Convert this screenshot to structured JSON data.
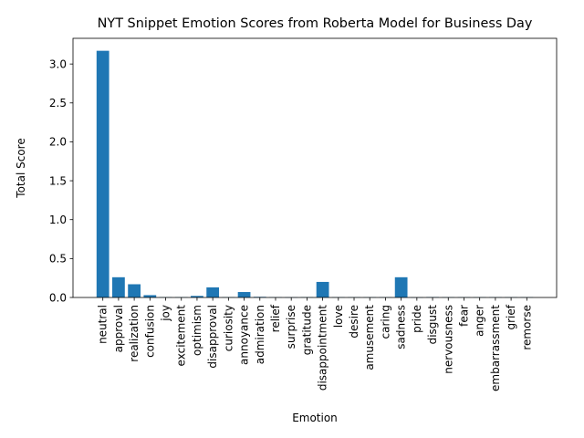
{
  "chart_data": {
    "type": "bar",
    "title": "NYT Snippet Emotion Scores from Roberta Model for Business Day",
    "xlabel": "Emotion",
    "ylabel": "Total Score",
    "ylim": [
      0,
      3.33
    ],
    "yticks": [
      "0.0",
      "0.5",
      "1.0",
      "1.5",
      "2.0",
      "2.5",
      "3.0"
    ],
    "bar_color": "#1f77b4",
    "grid": false,
    "categories": [
      "neutral",
      "approval",
      "realization",
      "confusion",
      "joy",
      "excitement",
      "optimism",
      "disapproval",
      "curiosity",
      "annoyance",
      "admiration",
      "relief",
      "surprise",
      "gratitude",
      "disappointment",
      "love",
      "desire",
      "amusement",
      "caring",
      "sadness",
      "pride",
      "disgust",
      "nervousness",
      "fear",
      "anger",
      "embarrassment",
      "grief",
      "remorse"
    ],
    "values": [
      3.17,
      0.26,
      0.17,
      0.03,
      0.005,
      0.005,
      0.02,
      0.13,
      0.005,
      0.07,
      0.008,
      0.004,
      0.003,
      0.005,
      0.2,
      0.004,
      0.004,
      0.004,
      0.004,
      0.26,
      0.002,
      0.006,
      0.004,
      0.004,
      0.004,
      0.004,
      0.004,
      0.004
    ]
  }
}
